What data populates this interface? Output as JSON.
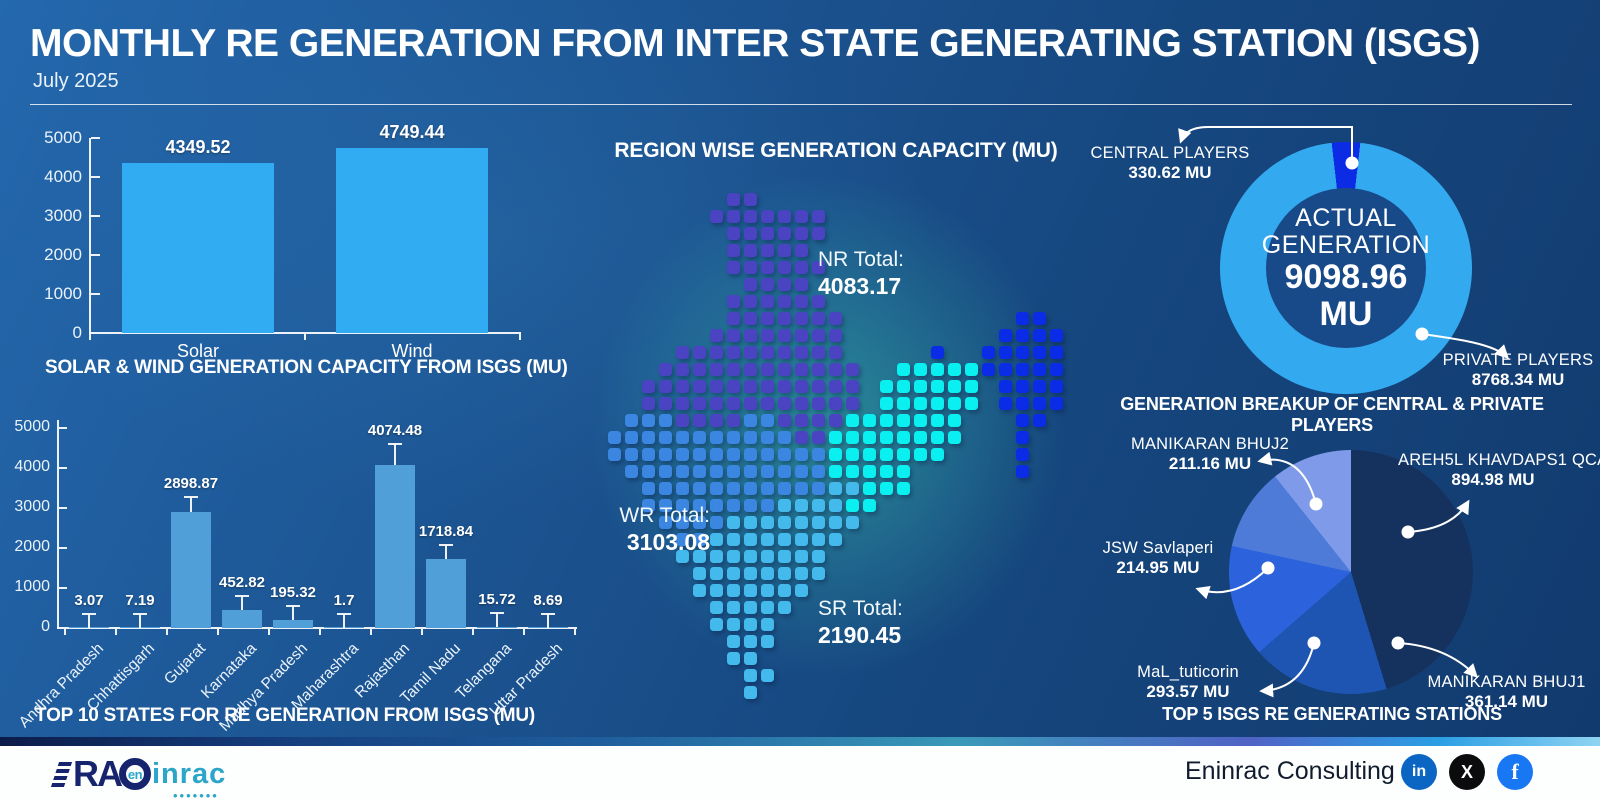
{
  "header": {
    "title": "MONTHLY RE GENERATION FROM INTER STATE GENERATING STATION (ISGS)",
    "subtitle": "July 2025"
  },
  "chart_data": [
    {
      "id": "solar_wind",
      "type": "bar",
      "title": "SOLAR & WIND GENERATION CAPACITY FROM ISGS (MU)",
      "categories": [
        "Solar",
        "Wind"
      ],
      "values": [
        4349.52,
        4749.44
      ],
      "value_labels": [
        "4349.52",
        "4749.44"
      ],
      "ylim": [
        0,
        5000
      ],
      "yticks": [
        0,
        1000,
        2000,
        3000,
        4000,
        5000
      ],
      "bar_color": "#31acf2",
      "grid": false,
      "legend": "none"
    },
    {
      "id": "top_states",
      "type": "bar",
      "title": "TOP 10 STATES FOR RE GENERATION FROM ISGS (MU)",
      "categories": [
        "Andhra Pradesh",
        "Chhattisgarh",
        "Gujarat",
        "Karnataka",
        "Madhya Pradesh",
        "Maharashtra",
        "Rajasthan",
        "Tamil Nadu",
        "Telangana",
        "Uttar Pradesh"
      ],
      "values": [
        3.07,
        7.19,
        2898.87,
        452.82,
        195.32,
        1.7,
        4074.48,
        1718.84,
        15.72,
        8.69
      ],
      "value_labels": [
        "3.07",
        "7.19",
        "2898.87",
        "452.82",
        "195.32",
        "1.7",
        "4074.48",
        "1718.84",
        "15.72",
        "8.69"
      ],
      "ylim": [
        0,
        5000
      ],
      "yticks": [
        0,
        1000,
        2000,
        3000,
        4000,
        5000
      ],
      "bar_color": "#519fd9",
      "error_whiskers": true,
      "grid": false,
      "legend": "none"
    },
    {
      "id": "actual_generation_donut",
      "type": "pie",
      "donut": true,
      "center": {
        "line1": "ACTUAL",
        "line2": "GENERATION",
        "value": "9098.96",
        "unit": "MU"
      },
      "slices": [
        {
          "label": "CENTRAL PLAYERS",
          "value": 330.62,
          "display": "330.62 MU",
          "color": "#0b2ce4"
        },
        {
          "label": "PRIVATE PLAYERS",
          "value": 8768.34,
          "display": "8768.34 MU",
          "color": "#33aaf0"
        }
      ]
    },
    {
      "id": "stations_pie",
      "type": "pie",
      "title": "GENERATION BREAKUP OF CENTRAL & PRIVATE PLAYERS",
      "caption": "TOP 5 ISGS RE GENERATING STATIONS",
      "slices": [
        {
          "label": "AREH5L KHAVDAPS1 QCA",
          "value": 894.98,
          "display": "894.98 MU",
          "color": "#15325f"
        },
        {
          "label": "MANIKARAN BHUJ1",
          "value": 361.14,
          "display": "361.14 MU",
          "color": "#1e55b2"
        },
        {
          "label": "MaL_tuticorin",
          "value": 293.57,
          "display": "293.57 MU",
          "color": "#2c63dd"
        },
        {
          "label": "JSW Savlaperi",
          "value": 214.95,
          "display": "214.95 MU",
          "color": "#4e7bd7"
        },
        {
          "label": "MANIKARAN BHUJ2",
          "value": 211.16,
          "display": "211.16 MU",
          "color": "#7e9ae8"
        }
      ]
    },
    {
      "id": "region_map",
      "type": "heatmap",
      "title": "REGION WISE GENERATION CAPACITY (MU)",
      "regions": [
        {
          "code": "NR",
          "label": "NR Total:",
          "value": "4083.17",
          "color": "#4a43c2"
        },
        {
          "code": "WR",
          "label": "WR Total:",
          "value": "3103.08",
          "color": "#3a86e0"
        },
        {
          "code": "SR",
          "label": "SR Total:",
          "value": "2190.45",
          "color": "#44baec"
        }
      ],
      "other_region_colors": {
        "ER": "#0aefef",
        "NE": "#0a2ce6"
      },
      "pattern": [
        ".......NN...................",
        "......NNNNNNN...............",
        ".......NNNNNN...............",
        ".......NNNNN................",
        ".......NNNNNN...............",
        "........NNNN................",
        ".......NNNNNN...............",
        ".......NNNNNNN..........XX..",
        "......NNNNNNNN.........XXXX.",
        "....NNNNNNNNNN.....X..XXXXX.",
        "...NNNNNNNNNNNN..EEEEEXXXXX.",
        "..NNNNNNNNNNNNN.EEEEEE.XXXX.",
        "..NNNNNNNNNNNNN.EEEEEE.XXXX.",
        ".WWWNNNNWWNNNNEEEEEEE...XX..",
        "WWWWWWWWWWWNNEEEEEEEE...X...",
        "WWWWWWWWWWWWWEEEEEEE....X...",
        ".WWWWWWWWWWWWEEEEE......X...",
        "..WWWWWWWWWWWSSEEE..........",
        "..WWWWWWWWSSSSEE............",
        "...WWWWSSSSSSSS.............",
        "....WWSSSSSSSS..............",
        "....SSSSSSSSS...............",
        ".....SSSSSSSS...............",
        ".....SSSSSSS................",
        "......SSSSS.................",
        "......SSSS..................",
        ".......SSS..................",
        ".......SS...................",
        "........SS..................",
        "........S..................."
      ]
    }
  ],
  "footer": {
    "logo": {
      "part1": "RA",
      "part2": "en",
      "part3": "inrac"
    },
    "company": "Eninrac Consulting",
    "social": [
      {
        "name": "linkedin",
        "glyph": "in"
      },
      {
        "name": "x",
        "glyph": "X"
      },
      {
        "name": "facebook",
        "glyph": "f"
      }
    ]
  }
}
